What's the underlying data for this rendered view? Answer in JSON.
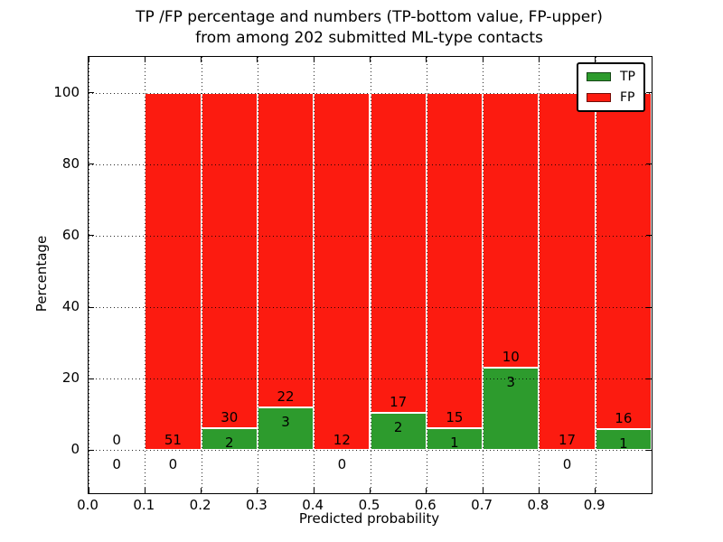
{
  "title": {
    "line1": "TP /FP percentage and numbers (TP-bottom value, FP-upper)",
    "line2": "from among 202 submitted ML-type contacts"
  },
  "chart_data": {
    "type": "bar",
    "stacking": "percent",
    "title": "TP /FP percentage and numbers (TP-bottom value, FP-upper) from among 202 submitted ML-type contacts",
    "xlabel": "Predicted probability",
    "ylabel": "Percentage",
    "total_contacts": 202,
    "xlim": [
      0,
      1
    ],
    "ylim": [
      -12,
      110
    ],
    "bin_width": 0.1,
    "bin_starts": [
      0.0,
      0.1,
      0.2,
      0.3,
      0.4,
      0.5,
      0.6,
      0.7,
      0.8,
      0.9
    ],
    "xtick_labels": [
      "0.0",
      "0.1",
      "0.2",
      "0.3",
      "0.4",
      "0.5",
      "0.6",
      "0.7",
      "0.8",
      "0.9"
    ],
    "ytick_values": [
      0,
      20,
      40,
      60,
      80,
      100
    ],
    "grid_style": "dotted",
    "categories": [
      "0.0-0.1",
      "0.1-0.2",
      "0.2-0.3",
      "0.3-0.4",
      "0.4-0.5",
      "0.5-0.6",
      "0.6-0.7",
      "0.7-0.8",
      "0.8-0.9",
      "0.9-1.0"
    ],
    "series": [
      {
        "name": "TP",
        "color": "#2d9b2d",
        "counts": [
          0,
          0,
          2,
          3,
          0,
          2,
          1,
          3,
          0,
          1
        ]
      },
      {
        "name": "FP",
        "color": "#fc1b10",
        "counts": [
          0,
          51,
          30,
          22,
          12,
          17,
          15,
          10,
          17,
          16
        ]
      }
    ],
    "legend": {
      "position": "upper-right",
      "entries": [
        {
          "label": "TP",
          "color": "#2d9b2d"
        },
        {
          "label": "FP",
          "color": "#fc1b10"
        }
      ]
    }
  }
}
